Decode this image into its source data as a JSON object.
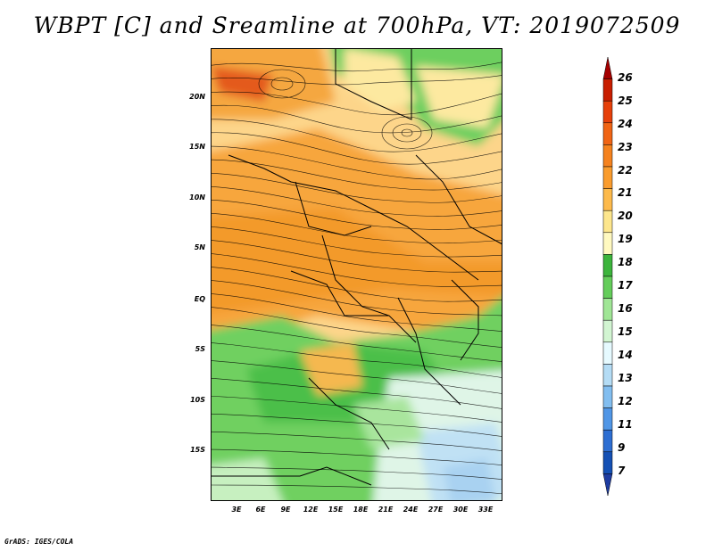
{
  "title": "WBPT [C] and Sreamline at 700hPa, VT: 2019072509",
  "credit": "GrADS: IGES/COLA",
  "map": {
    "lat_labels": [
      "20N",
      "15N",
      "10N",
      "5N",
      "EQ",
      "5S",
      "10S",
      "15S"
    ],
    "lon_labels": [
      "3E",
      "6E",
      "9E",
      "12E",
      "15E",
      "18E",
      "21E",
      "24E",
      "27E",
      "30E",
      "33E"
    ]
  },
  "colorbar": {
    "labels": [
      "26",
      "25",
      "24",
      "23",
      "22",
      "21",
      "20",
      "19",
      "18",
      "17",
      "16",
      "15",
      "14",
      "13",
      "12",
      "11",
      "9",
      "7"
    ],
    "colors": [
      "#a50000",
      "#c81e00",
      "#e6400a",
      "#f06414",
      "#f5821e",
      "#fa9c2d",
      "#fdba4b",
      "#fde68c",
      "#fff9c0",
      "#3cb43c",
      "#64cd5a",
      "#a0e696",
      "#d2f5d2",
      "#e6faff",
      "#b4dcf5",
      "#82bef0",
      "#5096e6",
      "#2d6ed2",
      "#1450b4",
      "#1e3ca0"
    ]
  }
}
